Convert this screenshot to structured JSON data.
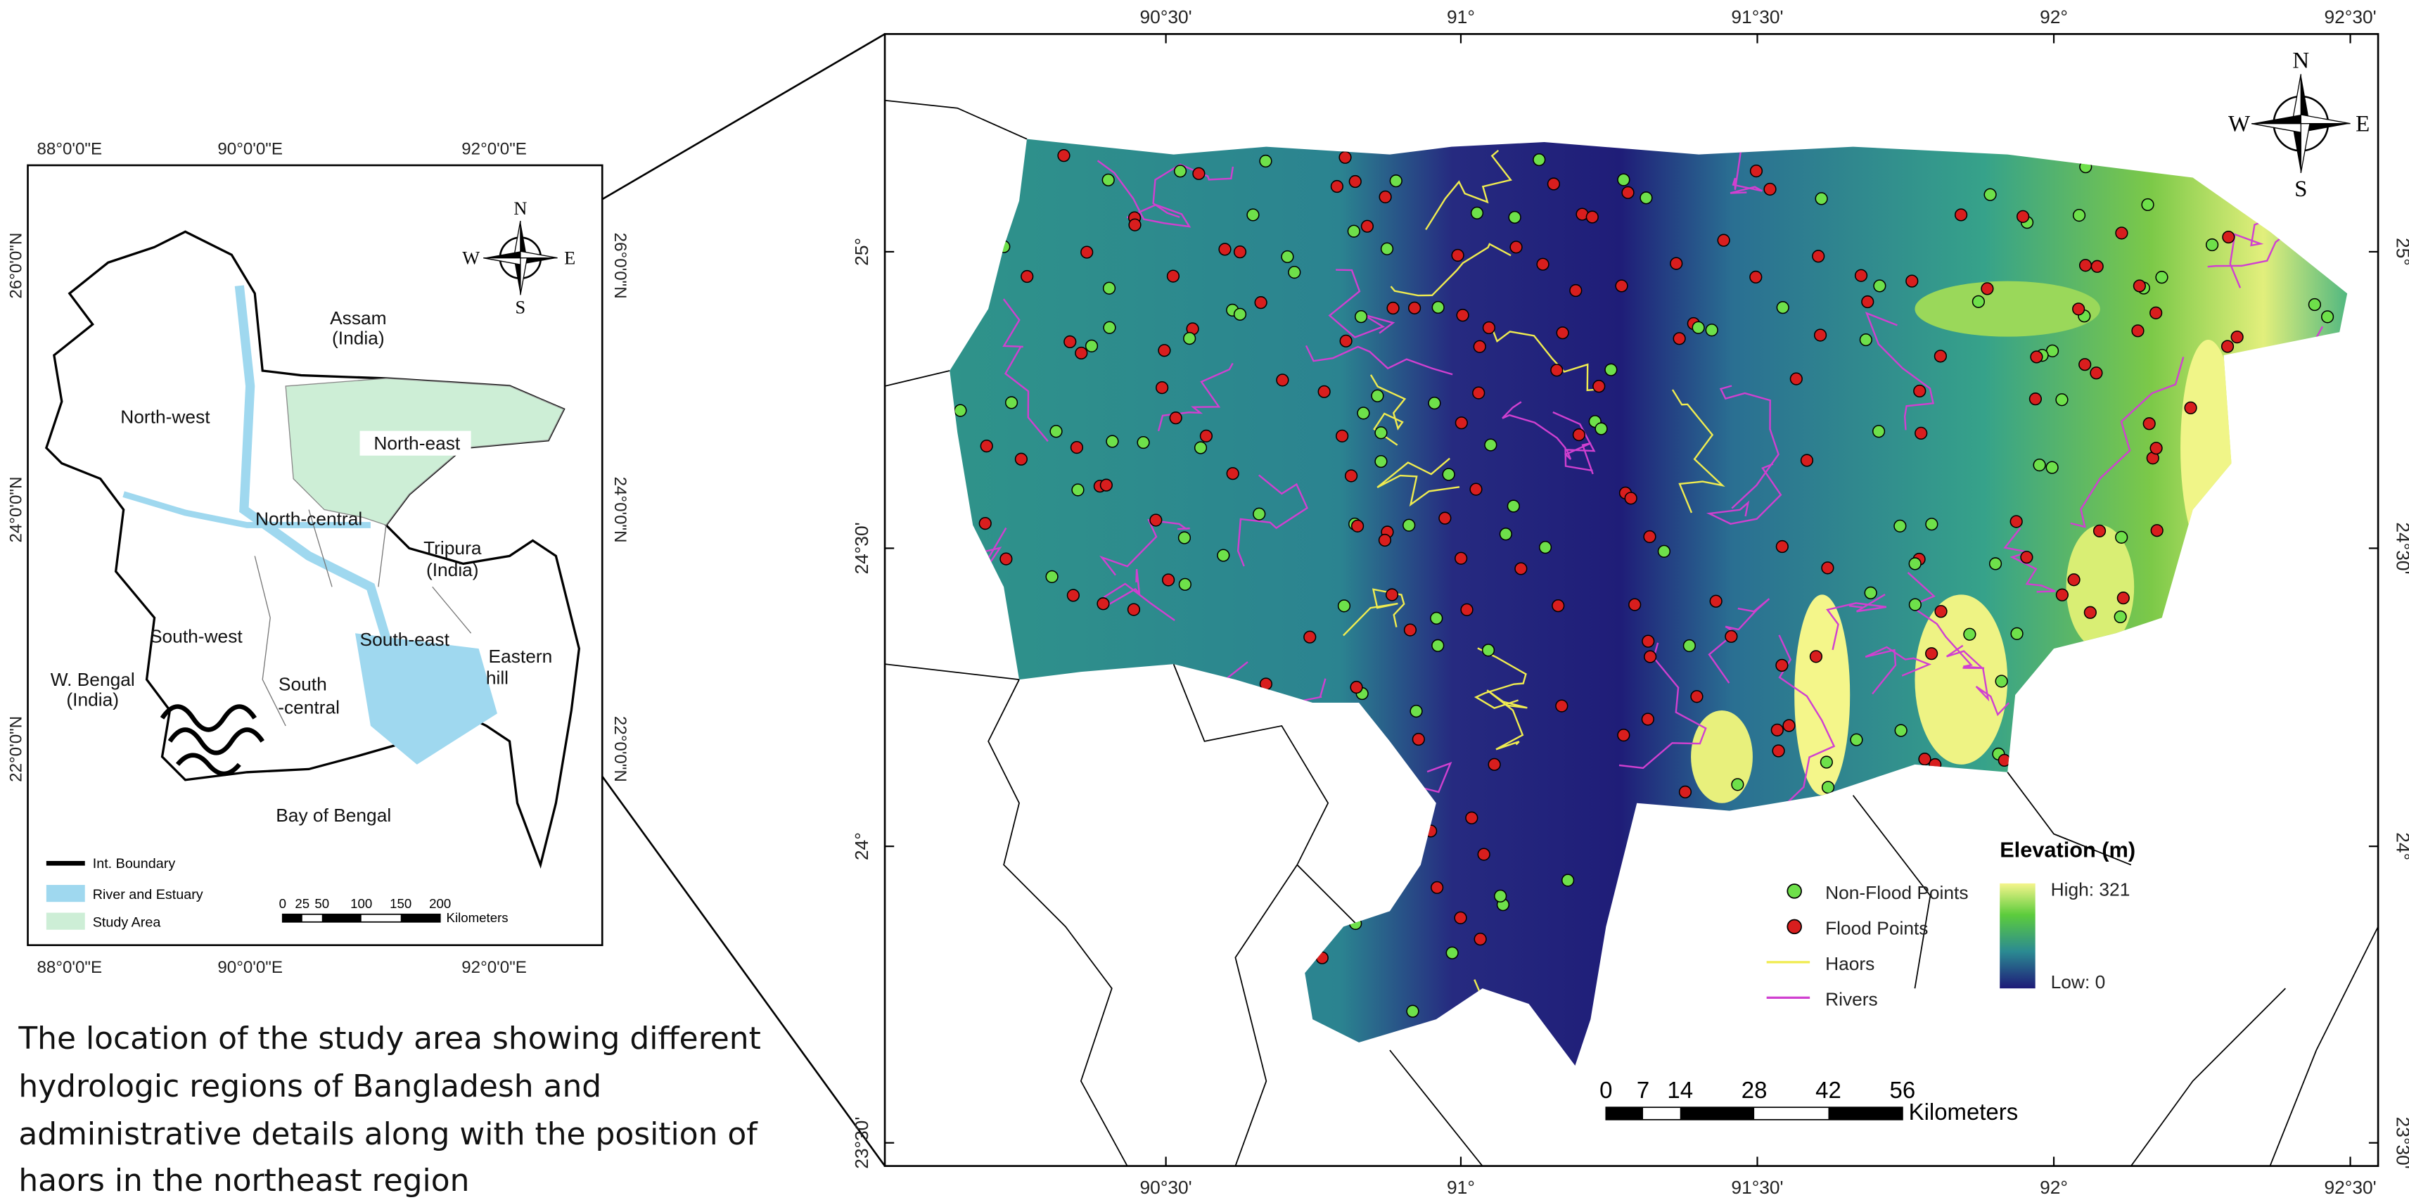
{
  "left_map": {
    "lon_labels": [
      "88°0'0\"E",
      "90°0'0\"E",
      "92°0'0\"E"
    ],
    "lat_labels": [
      "26°0'0\"N",
      "24°0'0\"N",
      "22°0'0\"N"
    ],
    "regions": {
      "assam": [
        "Assam",
        "(India)"
      ],
      "north_west": "North-west",
      "north_east": "North-east",
      "north_central": "North-central",
      "tripura": [
        "Tripura",
        "(India)"
      ],
      "south_west": "South-west",
      "south_east": "South-east",
      "eastern_hill": [
        "Eastern",
        "hill"
      ],
      "w_bengal": [
        "W. Bengal",
        "(India)"
      ],
      "south_central": [
        "South",
        "-central"
      ],
      "bay": "Bay of Bengal"
    },
    "legend": [
      "Int. Boundary",
      "River and Estuary",
      "Study Area"
    ],
    "scale": {
      "ticks": [
        0,
        25,
        50,
        100,
        150,
        200
      ],
      "unit": "Kilometers"
    }
  },
  "right_map": {
    "lon_labels": [
      "90°30'",
      "91°",
      "91°30'",
      "92°",
      "92°30'"
    ],
    "lat_labels": [
      "25°",
      "24°30'",
      "24°",
      "23°30'"
    ],
    "legend": {
      "title": "Elevation (m)",
      "high": "High: 321",
      "low": "Low: 0",
      "items": [
        "Non-Flood Points",
        "Flood Points",
        "Haors",
        "Rivers"
      ]
    },
    "scale": {
      "ticks": [
        0,
        7,
        14,
        28,
        42,
        56
      ],
      "unit": "Kilometers"
    }
  },
  "compass": {
    "n": "N",
    "e": "E",
    "s": "S",
    "w": "W"
  },
  "caption": [
    "The location of the study area showing different",
    "hydrologic regions of Bangladesh and",
    "administrative details along with the position of",
    "haors in the northeast region"
  ]
}
